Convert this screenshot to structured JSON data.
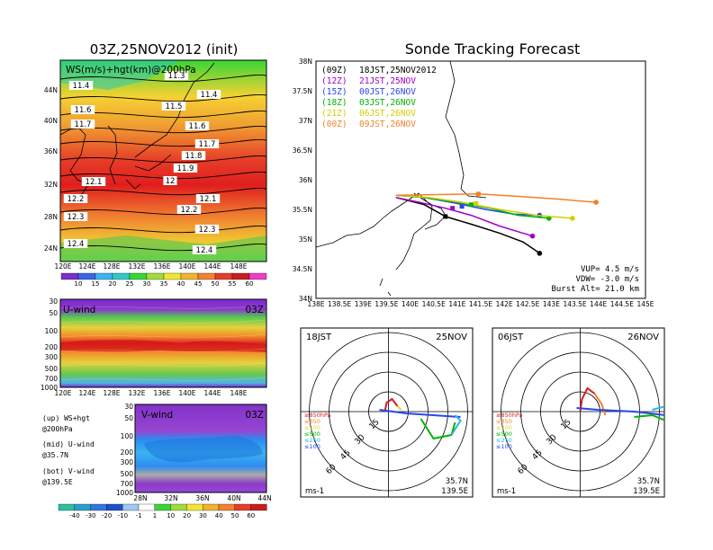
{
  "left_panel": {
    "title": "03Z,25NOV2012 (init)",
    "map_label": "WS(m/s)+hgt(km)@200hPa",
    "lat_ticks": [
      "44N",
      "40N",
      "36N",
      "32N",
      "28N",
      "24N"
    ],
    "lon_ticks": [
      "120E",
      "124E",
      "128E",
      "132E",
      "136E",
      "140E",
      "144E",
      "148E"
    ],
    "contour_labels": [
      "11.4",
      "11.3",
      "11.4",
      "11.6",
      "11.5",
      "11.7",
      "11.6",
      "11.7",
      "11.8",
      "11.9",
      "12.1",
      "12",
      "12.2",
      "12.1",
      "12.3",
      "12.2",
      "12.3",
      "12.4",
      "12.4"
    ],
    "ws_scale": [
      "10",
      "15",
      "20",
      "25",
      "30",
      "35",
      "40",
      "45",
      "50",
      "55",
      "60"
    ],
    "u_label": "U-wind",
    "v_label": "V-wind",
    "time_tag": "03Z",
    "p_ticks": [
      "30",
      "50",
      "100",
      "200",
      "300",
      "500",
      "700",
      "1000"
    ],
    "v_lat_ticks": [
      "28N",
      "32N",
      "36N",
      "40N",
      "44N"
    ],
    "wind_scale": [
      "-40",
      "-30",
      "-20",
      "-10",
      "-1",
      "1",
      "10",
      "20",
      "30",
      "40",
      "50",
      "60"
    ],
    "legend_lines": [
      "(up) WS+hgt",
      "     @200hPa",
      "(mid) U-wind",
      "     @35.7N",
      "(bot) V-wind",
      "     @139.5E"
    ]
  },
  "right_panel": {
    "title": "Sonde Tracking Forecast",
    "lat_ticks": [
      "38N",
      "37.5N",
      "37N",
      "36.5N",
      "36N",
      "35.5N",
      "35N",
      "34.5N",
      "34N"
    ],
    "lon_ticks": [
      "138E",
      "138.5E",
      "139E",
      "139.5E",
      "140E",
      "140.5E",
      "141E",
      "141.5E",
      "142E",
      "142.5E",
      "143E",
      "143.5E",
      "144E",
      "144.5E",
      "145E"
    ],
    "legend": [
      {
        "z": "(09Z)",
        "jst": "18JST,25NOV2012",
        "color": "#000000"
      },
      {
        "z": "(12Z)",
        "jst": "21JST,25NOV",
        "color": "#a000c8"
      },
      {
        "z": "(15Z)",
        "jst": "00JST,26NOV",
        "color": "#2846f0"
      },
      {
        "z": "(18Z)",
        "jst": "03JST,26NOV",
        "color": "#00b400"
      },
      {
        "z": "(21Z)",
        "jst": "06JST,26NOV",
        "color": "#d0d000"
      },
      {
        "z": "(00Z)",
        "jst": "09JST,26NOV",
        "color": "#f08228"
      }
    ],
    "params": [
      "VUP=  4.5 m/s",
      "VDW= -3.0 m/s",
      "Burst Alt= 21.0 km"
    ],
    "hodographs": [
      {
        "time": "18JST",
        "date": "25NOV"
      },
      {
        "time": "06JST",
        "date": "26NOV"
      }
    ],
    "hodo_levels": [
      "≥850hPa",
      "≤850",
      "≤700",
      "≤500",
      "≤250",
      "≤100"
    ],
    "hodo_ring_labels": [
      "15",
      "30",
      "45",
      "60"
    ],
    "hodo_units": "ms-1",
    "hodo_lat": "35.7N",
    "hodo_lon": "139.5E"
  },
  "chart_data": {
    "type": "line",
    "title": "Sonde Tracking Forecast",
    "xlim": [
      138.0,
      145.0
    ],
    "ylim": [
      34.0,
      38.0
    ],
    "series": [
      {
        "name": "18JST,25NOV2012",
        "color": "#000000",
        "x": [
          139.7,
          140.3,
          140.75,
          141.3,
          141.9,
          142.4,
          142.75
        ],
        "y": [
          35.7,
          35.58,
          35.38,
          35.25,
          35.1,
          34.95,
          34.76
        ]
      },
      {
        "name": "21JST,25NOV",
        "color": "#a000c8",
        "x": [
          139.7,
          140.2,
          140.75,
          141.3,
          141.9,
          142.6
        ],
        "y": [
          35.7,
          35.62,
          35.52,
          35.4,
          35.22,
          35.05
        ]
      },
      {
        "name": "00JST,26NOV",
        "color": "#2846f0",
        "x": [
          139.7,
          140.3,
          141.0,
          141.6,
          142.2,
          142.75
        ],
        "y": [
          35.74,
          35.7,
          35.6,
          35.5,
          35.42,
          35.4
        ]
      },
      {
        "name": "03JST,26NOV",
        "color": "#00b400",
        "x": [
          139.7,
          140.3,
          141.0,
          141.7,
          142.3,
          142.95
        ],
        "y": [
          35.74,
          35.7,
          35.62,
          35.52,
          35.4,
          35.35
        ]
      },
      {
        "name": "06JST,26NOV",
        "color": "#d0d000",
        "x": [
          139.7,
          140.4,
          141.1,
          141.9,
          142.7,
          143.45
        ],
        "y": [
          35.74,
          35.7,
          35.62,
          35.5,
          35.4,
          35.35
        ]
      },
      {
        "name": "09JST,26NOV",
        "color": "#f08228",
        "x": [
          139.7,
          140.6,
          141.45,
          142.3,
          143.2,
          143.95
        ],
        "y": [
          35.74,
          35.75,
          35.76,
          35.72,
          35.67,
          35.62
        ]
      }
    ],
    "markers": [
      {
        "color": "#000000",
        "x": 140.75,
        "y": 35.38
      },
      {
        "color": "#a000c8",
        "x": 140.9,
        "y": 35.52
      },
      {
        "color": "#2846f0",
        "x": 141.1,
        "y": 35.55
      },
      {
        "color": "#00b400",
        "x": 141.3,
        "y": 35.58
      },
      {
        "color": "#d0d000",
        "x": 141.4,
        "y": 35.6
      },
      {
        "color": "#f08228",
        "x": 141.45,
        "y": 35.76
      }
    ]
  }
}
